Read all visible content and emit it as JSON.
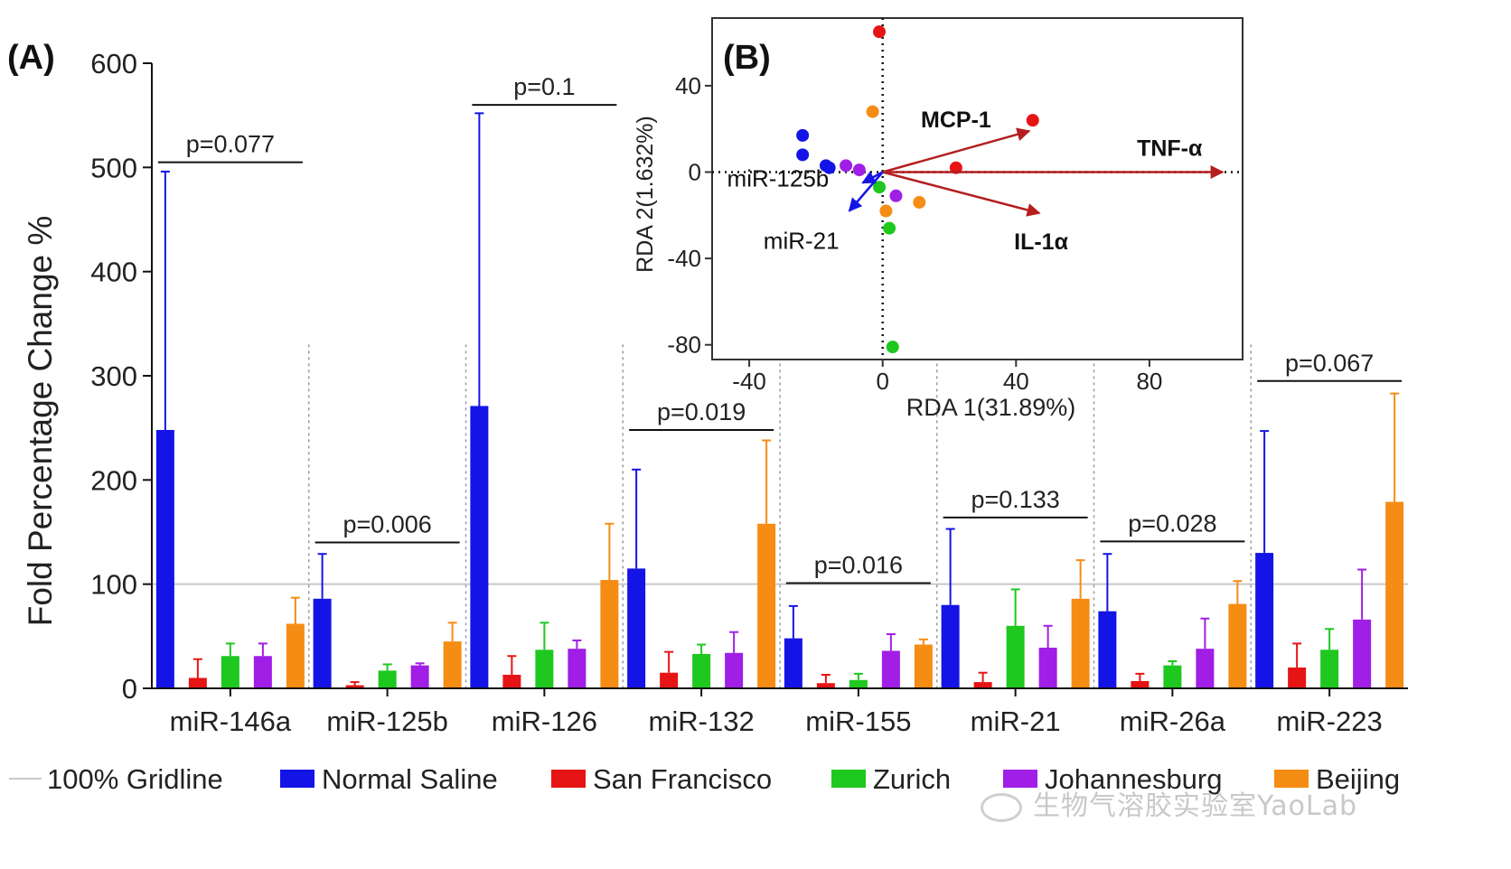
{
  "panel_a_label": "(A)",
  "panel_b_label": "(B)",
  "watermark": "生物气溶胶实验室YaoLab",
  "colors": {
    "Normal Saline": "#1414e6",
    "San Francisco": "#e61414",
    "Zurich": "#1ec81e",
    "Johannesburg": "#a01ee6",
    "Beijing": "#f58c14",
    "gridline": "#c8c8c8",
    "arrow": "#b41e1e"
  },
  "legend": {
    "gridline_label": "100% Gridline",
    "series": [
      "Normal Saline",
      "San Francisco",
      "Zurich",
      "Johannesburg",
      "Beijing"
    ]
  },
  "chart_data": [
    {
      "type": "bar",
      "ylabel": "Fold Percentage Change %",
      "ylim": [
        0,
        600
      ],
      "yticks": [
        0,
        100,
        200,
        300,
        400,
        500,
        600
      ],
      "reference_line": 100,
      "categories": [
        "miR-146a",
        "miR-125b",
        "miR-126",
        "miR-132",
        "miR-155",
        "miR-21",
        "miR-26a",
        "miR-223"
      ],
      "series": [
        {
          "name": "Normal Saline",
          "values": [
            248,
            86,
            271,
            115,
            48,
            80,
            74,
            130
          ],
          "errors": [
            248,
            43,
            281,
            95,
            31,
            73,
            55,
            117
          ]
        },
        {
          "name": "San Francisco",
          "values": [
            10,
            3,
            13,
            15,
            5,
            6,
            7,
            20
          ],
          "errors": [
            18,
            3,
            18,
            20,
            8,
            9,
            7,
            23
          ]
        },
        {
          "name": "Zurich",
          "values": [
            31,
            17,
            37,
            33,
            8,
            60,
            22,
            37
          ],
          "errors": [
            12,
            6,
            26,
            9,
            6,
            35,
            4,
            20
          ]
        },
        {
          "name": "Johannesburg",
          "values": [
            31,
            22,
            38,
            34,
            36,
            39,
            38,
            66
          ],
          "errors": [
            12,
            2,
            8,
            20,
            16,
            21,
            29,
            48
          ]
        },
        {
          "name": "Beijing",
          "values": [
            62,
            45,
            104,
            158,
            42,
            86,
            81,
            179
          ],
          "errors": [
            25,
            18,
            54,
            80,
            5,
            37,
            22,
            104
          ]
        }
      ],
      "annotations": [
        {
          "category": "miR-146a",
          "text": "p=0.077",
          "y": 505
        },
        {
          "category": "miR-125b",
          "text": "p=0.006",
          "y": 140
        },
        {
          "category": "miR-126",
          "text": "p=0.1",
          "y": 560
        },
        {
          "category": "miR-132",
          "text": "p=0.019",
          "y": 248
        },
        {
          "category": "miR-155",
          "text": "p=0.016",
          "y": 101
        },
        {
          "category": "miR-21",
          "text": "p=0.133",
          "y": 164
        },
        {
          "category": "miR-26a",
          "text": "p=0.028",
          "y": 141
        },
        {
          "category": "miR-223",
          "text": "p=0.067",
          "y": 295
        }
      ]
    },
    {
      "type": "scatter",
      "title": "(B)",
      "xlabel": "RDA 1(31.89%)",
      "ylabel": "RDA 2(1.632%)",
      "xlim": [
        -45,
        110
      ],
      "ylim": [
        -88,
        72
      ],
      "xticks": [
        -40,
        0,
        40,
        80
      ],
      "yticks": [
        40,
        0,
        -40,
        -80
      ],
      "points": [
        {
          "group": "San Francisco",
          "x": -1,
          "y": 65
        },
        {
          "group": "San Francisco",
          "x": 45,
          "y": 24
        },
        {
          "group": "San Francisco",
          "x": 22,
          "y": 2
        },
        {
          "group": "Beijing",
          "x": -3,
          "y": 28
        },
        {
          "group": "Beijing",
          "x": 11,
          "y": -14
        },
        {
          "group": "Beijing",
          "x": 1,
          "y": -18
        },
        {
          "group": "Normal Saline",
          "x": -24,
          "y": 17
        },
        {
          "group": "Normal Saline",
          "x": -24,
          "y": 8
        },
        {
          "group": "Normal Saline",
          "x": -17,
          "y": 3
        },
        {
          "group": "Normal Saline",
          "x": -16,
          "y": 2
        },
        {
          "group": "Johannesburg",
          "x": -11,
          "y": 3
        },
        {
          "group": "Johannesburg",
          "x": -7,
          "y": 1
        },
        {
          "group": "Johannesburg",
          "x": 4,
          "y": -11
        },
        {
          "group": "Zurich",
          "x": -1,
          "y": -7
        },
        {
          "group": "Zurich",
          "x": 2,
          "y": -26
        },
        {
          "group": "Zurich",
          "x": 3,
          "y": -81
        }
      ],
      "vectors": [
        {
          "label": "MCP-1",
          "x": 44,
          "y": 19,
          "kind": "response"
        },
        {
          "label": "TNF-α",
          "x": 102,
          "y": 0,
          "kind": "response"
        },
        {
          "label": "IL-1α",
          "x": 47,
          "y": -19,
          "kind": "response"
        },
        {
          "label": "miR-125b",
          "x": -6,
          "y": -5,
          "kind": "explanatory"
        },
        {
          "label": "miR-21",
          "x": -10,
          "y": -18,
          "kind": "explanatory"
        }
      ]
    }
  ]
}
